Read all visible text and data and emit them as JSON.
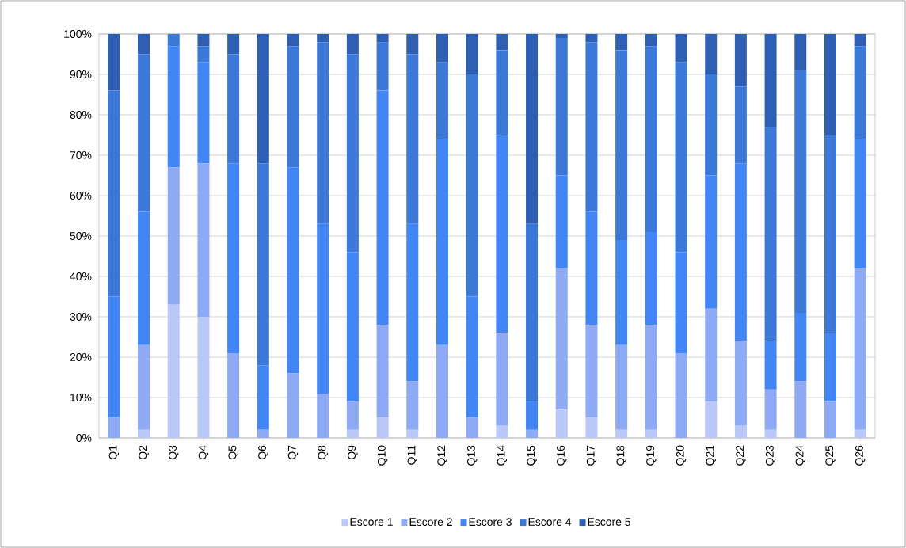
{
  "chart_data": {
    "type": "bar",
    "stacked": true,
    "categories": [
      "Q1",
      "Q2",
      "Q3",
      "Q4",
      "Q5",
      "Q6",
      "Q7",
      "Q8",
      "Q9",
      "Q10",
      "Q11",
      "Q12",
      "Q13",
      "Q14",
      "Q15",
      "Q16",
      "Q17",
      "Q18",
      "Q19",
      "Q20",
      "Q21",
      "Q22",
      "Q23",
      "Q24",
      "Q25",
      "Q26"
    ],
    "series": [
      {
        "name": "Escore 1",
        "color": "#bac8f8",
        "values": [
          0,
          2,
          33,
          30,
          0,
          0,
          0,
          0,
          2,
          5,
          2,
          0,
          0,
          3,
          0,
          7,
          5,
          2,
          2,
          0,
          9,
          3,
          2,
          0,
          0,
          2
        ]
      },
      {
        "name": "Escore 2",
        "color": "#8faaf5",
        "values": [
          5,
          21,
          34,
          38,
          21,
          2,
          16,
          11,
          7,
          23,
          12,
          23,
          5,
          23,
          2,
          35,
          23,
          21,
          26,
          21,
          23,
          21,
          10,
          14,
          9,
          40
        ]
      },
      {
        "name": "Escore 3",
        "color": "#4285f4",
        "values": [
          30,
          33,
          30,
          25,
          47,
          16,
          51,
          42,
          37,
          58,
          39,
          51,
          30,
          49,
          7,
          23,
          28,
          26,
          23,
          25,
          33,
          44,
          12,
          17,
          17,
          32
        ]
      },
      {
        "name": "Escore 4",
        "color": "#3b78d8",
        "values": [
          51,
          39,
          3,
          4,
          27,
          50,
          30,
          45,
          49,
          12,
          42,
          19,
          55,
          21,
          44,
          34,
          42,
          47,
          46,
          47,
          25,
          19,
          53,
          60,
          49,
          23
        ]
      },
      {
        "name": "Escore 5",
        "color": "#2f5fb3",
        "values": [
          14,
          5,
          0,
          3,
          5,
          32,
          3,
          2,
          5,
          2,
          5,
          7,
          10,
          4,
          47,
          1,
          2,
          4,
          3,
          7,
          10,
          13,
          23,
          9,
          25,
          3
        ]
      }
    ],
    "ylim": [
      0,
      100
    ],
    "yticks": [
      {
        "value": 0,
        "label": "0%"
      },
      {
        "value": 10,
        "label": "10%"
      },
      {
        "value": 20,
        "label": "20%"
      },
      {
        "value": 30,
        "label": "30%"
      },
      {
        "value": 40,
        "label": "40%"
      },
      {
        "value": 50,
        "label": "50%"
      },
      {
        "value": 60,
        "label": "60%"
      },
      {
        "value": 70,
        "label": "70%"
      },
      {
        "value": 80,
        "label": "80%"
      },
      {
        "value": 90,
        "label": "90%"
      },
      {
        "value": 100,
        "label": "100%"
      }
    ],
    "grid": "y",
    "legend": "bottom"
  }
}
